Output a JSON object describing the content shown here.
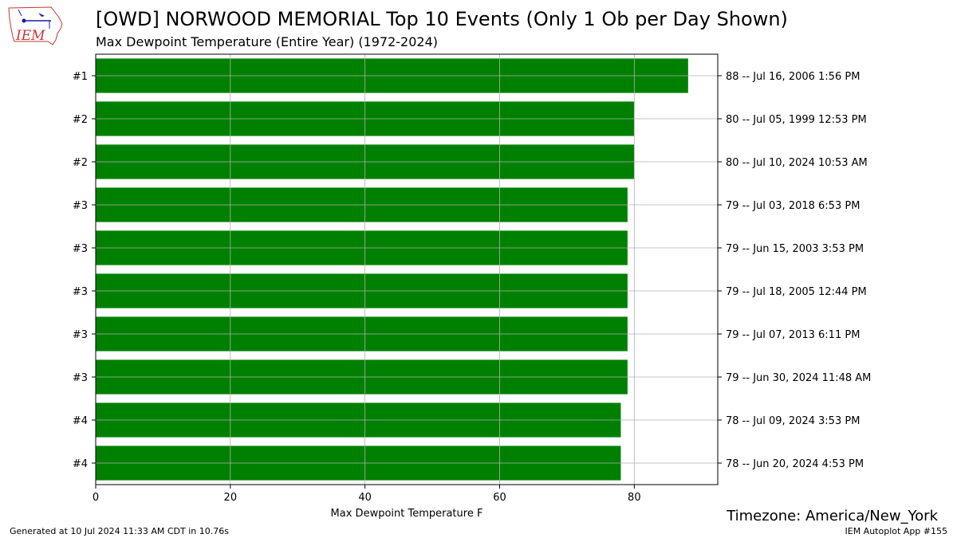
{
  "header": {
    "logo_text": "IEM",
    "title": "[OWD] NORWOOD MEMORIAL Top 10 Events (Only 1 Ob per Day Shown)",
    "subtitle": "Max Dewpoint Temperature  (Entire Year) (1972-2024)"
  },
  "footer": {
    "timezone": "Timezone: America/New_York",
    "generated": "Generated at 10 Jul 2024 11:33 AM CDT in 10.76s",
    "app": "IEM Autoplot App #155"
  },
  "colors": {
    "bar": "#008000",
    "grid": "#b0b0b0",
    "logo_outline": "#cc3333",
    "logo_icon": "#1a1aa6"
  },
  "chart_data": {
    "type": "bar",
    "orientation": "horizontal",
    "xlabel": "Max Dewpoint Temperature F",
    "xlim": [
      0,
      92.4
    ],
    "xticks": [
      0,
      20,
      40,
      60,
      80
    ],
    "grid": true,
    "categories": [
      "#1",
      "#2",
      "#2",
      "#3",
      "#3",
      "#3",
      "#3",
      "#3",
      "#4",
      "#4"
    ],
    "values": [
      88,
      80,
      80,
      79,
      79,
      79,
      79,
      79,
      78,
      78
    ],
    "right_labels": [
      "88 -- Jul 16, 2006 1:56 PM",
      "80 -- Jul 05, 1999 12:53 PM",
      "80 -- Jul 10, 2024 10:53 AM",
      "79 -- Jul 03, 2018 6:53 PM",
      "79 -- Jun 15, 2003 3:53 PM",
      "79 -- Jul 18, 2005 12:44 PM",
      "79 -- Jul 07, 2013 6:11 PM",
      "79 -- Jun 30, 2024 11:48 AM",
      "78 -- Jul 09, 2024 3:53 PM",
      "78 -- Jun 20, 2024 4:53 PM"
    ]
  }
}
